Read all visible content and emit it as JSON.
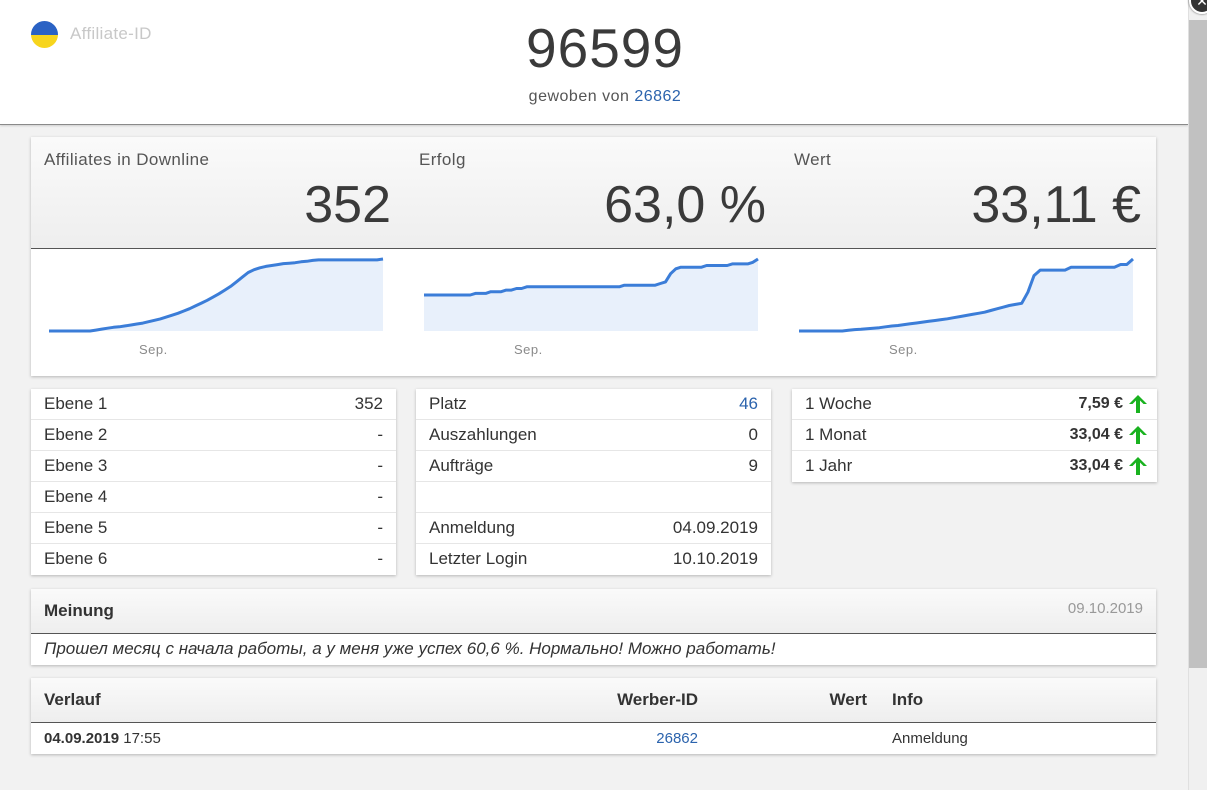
{
  "header": {
    "affiliate_label": "Affiliate-ID",
    "affiliate_id": "96599",
    "woven_by_label": "gewoben von",
    "woven_by_id": "26862",
    "flag_colors": [
      "#2a62c4",
      "#f7d51d"
    ]
  },
  "stats": [
    {
      "label": "Affiliates in Downline",
      "value": "352",
      "axis_label": "Sep."
    },
    {
      "label": "Erfolg",
      "value": "63,0 %",
      "axis_label": "Sep."
    },
    {
      "label": "Wert",
      "value": "33,11 €",
      "axis_label": "Sep."
    }
  ],
  "chart_data": [
    {
      "type": "area",
      "title": "Affiliates in Downline",
      "x_tick_labels": [
        "Sep."
      ],
      "values": [
        0,
        0,
        0,
        0,
        0,
        0,
        0,
        0,
        4,
        8,
        12,
        16,
        18,
        22,
        26,
        30,
        34,
        40,
        46,
        52,
        60,
        68,
        76,
        86,
        96,
        108,
        120,
        132,
        146,
        160,
        176,
        192,
        212,
        232,
        252,
        264,
        272,
        278,
        282,
        286,
        290,
        292,
        294,
        298,
        300,
        304,
        306,
        306,
        306,
        306,
        306,
        306,
        306,
        306,
        306,
        306,
        306,
        310
      ],
      "color": "#3b7dd8"
    },
    {
      "type": "area",
      "title": "Erfolg",
      "x_tick_labels": [
        "Sep."
      ],
      "values": [
        22,
        22,
        22,
        22,
        22,
        22,
        22,
        22,
        22,
        22,
        23,
        23,
        23,
        24,
        24,
        24,
        25,
        25,
        26,
        26,
        27,
        27,
        27,
        27,
        27,
        27,
        27,
        27,
        27,
        27,
        27,
        27,
        27,
        27,
        27,
        27,
        27,
        27,
        27,
        28,
        28,
        28,
        28,
        28,
        28,
        28,
        29,
        30,
        35,
        38,
        39,
        39,
        39,
        39,
        39,
        40,
        40,
        40,
        40,
        40,
        41,
        41,
        41,
        41,
        42,
        44
      ],
      "color": "#3b7dd8"
    },
    {
      "type": "area",
      "title": "Wert",
      "x_tick_labels": [
        "Sep."
      ],
      "values": [
        0,
        0,
        0,
        0,
        0,
        0,
        0,
        0,
        0.3,
        0.5,
        0.6,
        0.8,
        1,
        1.2,
        1.5,
        1.8,
        2,
        2.3,
        2.6,
        2.9,
        3.2,
        3.5,
        3.8,
        4.1,
        4.4,
        4.8,
        5.2,
        5.6,
        6,
        6.4,
        6.8,
        7.4,
        8,
        8.6,
        9.2,
        9.6,
        10,
        14,
        20,
        22,
        22,
        22,
        22,
        22,
        23,
        23,
        23,
        23,
        23,
        23,
        23,
        23,
        24,
        24,
        26
      ],
      "color": "#3b7dd8"
    }
  ],
  "levels": [
    {
      "label": "Ebene 1",
      "value": "352"
    },
    {
      "label": "Ebene 2",
      "value": "-"
    },
    {
      "label": "Ebene 3",
      "value": "-"
    },
    {
      "label": "Ebene 4",
      "value": "-"
    },
    {
      "label": "Ebene 5",
      "value": "-"
    },
    {
      "label": "Ebene 6",
      "value": "-"
    }
  ],
  "info": {
    "platz_label": "Platz",
    "platz_value": "46",
    "auszahlungen_label": "Auszahlungen",
    "auszahlungen_value": "0",
    "auftraege_label": "Aufträge",
    "auftraege_value": "9",
    "anmeldung_label": "Anmeldung",
    "anmeldung_value": "04.09.2019",
    "login_label": "Letzter Login",
    "login_value": "10.10.2019"
  },
  "earnings": [
    {
      "label": "1 Woche",
      "value": "7,59 €",
      "trend": "up"
    },
    {
      "label": "1 Monat",
      "value": "33,04 €",
      "trend": "up"
    },
    {
      "label": "1 Jahr",
      "value": "33,04 €",
      "trend": "up"
    }
  ],
  "opinion": {
    "title": "Meinung",
    "date": "09.10.2019",
    "text": "Прошел месяц с начала работы, а у меня уже успех 60,6 %. Нормально! Можно работать!"
  },
  "history": {
    "columns": {
      "verlauf": "Verlauf",
      "werber": "Werber-ID",
      "wert": "Wert",
      "info": "Info"
    },
    "rows": [
      {
        "date": "04.09.2019",
        "time": "17:55",
        "werber_id": "26862",
        "wert": "",
        "info": "Anmeldung"
      }
    ]
  },
  "colors": {
    "link": "#2b63ad",
    "trend_up": "#19b21f",
    "chart_line": "#3b7dd8",
    "chart_fill": "#e8f0fb"
  }
}
